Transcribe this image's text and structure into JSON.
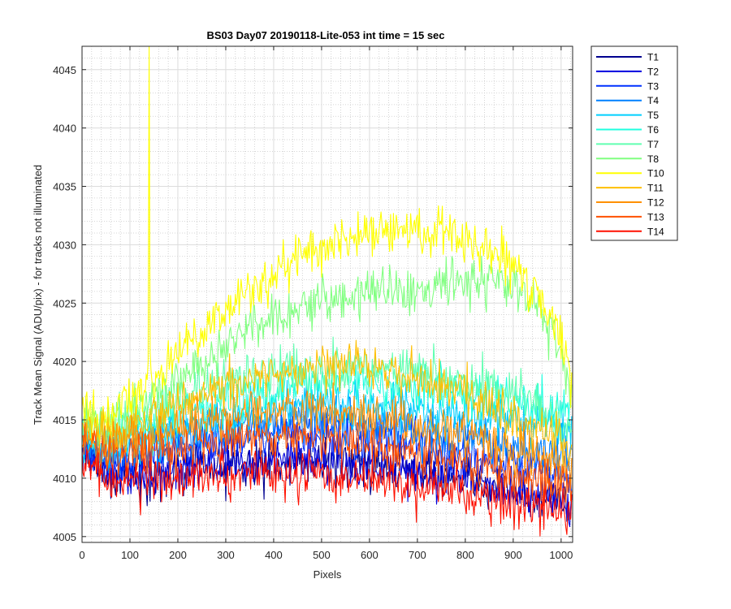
{
  "chart_data": {
    "type": "line",
    "title": "BS03 Day07 20190118-Lite-053 int time = 15 sec",
    "xlabel": "Pixels",
    "ylabel": "Track Mean Signal (ADU/pix) - for tracks not illuminated",
    "xlim": [
      0,
      1024
    ],
    "ylim": [
      4004.5,
      4047.0
    ],
    "xticks": [
      "0",
      "100",
      "200",
      "300",
      "400",
      "500",
      "600",
      "700",
      "800",
      "900",
      "1000"
    ],
    "yticks": [
      "4005",
      "4010",
      "4015",
      "4020",
      "4025",
      "4030",
      "4035",
      "4040",
      "4045"
    ],
    "grid": "major and minor",
    "legend_position": "outside-right-top",
    "x": [
      0,
      50,
      100,
      150,
      200,
      250,
      300,
      350,
      400,
      450,
      500,
      550,
      600,
      650,
      700,
      750,
      800,
      850,
      900,
      950,
      1000,
      1024
    ],
    "series": [
      {
        "name": "T1",
        "color": "#00008f",
        "values": [
          4012.0,
          4010.5,
          4010.0,
          4010.2,
          4010.5,
          4010.8,
          4011.0,
          4011.2,
          4011.3,
          4011.5,
          4011.5,
          4011.3,
          4011.0,
          4010.8,
          4010.5,
          4010.3,
          4010.0,
          4009.5,
          4009.0,
          4008.5,
          4008.0,
          4007.5
        ]
      },
      {
        "name": "T2",
        "color": "#0000df",
        "values": [
          4012.2,
          4010.7,
          4010.2,
          4010.4,
          4010.7,
          4011.0,
          4011.2,
          4011.4,
          4011.5,
          4011.6,
          4011.6,
          4011.4,
          4011.2,
          4011.0,
          4010.7,
          4010.5,
          4010.2,
          4009.7,
          4009.2,
          4008.7,
          4008.2,
          4007.7
        ]
      },
      {
        "name": "T3",
        "color": "#0030ff",
        "values": [
          4012.5,
          4011.5,
          4011.5,
          4012.0,
          4012.5,
          4013.0,
          4013.3,
          4013.6,
          4013.8,
          4014.0,
          4014.0,
          4013.8,
          4013.5,
          4013.2,
          4012.8,
          4012.5,
          4012.0,
          4011.5,
          4011.0,
          4010.5,
          4010.0,
          4009.5
        ]
      },
      {
        "name": "T4",
        "color": "#0080ff",
        "values": [
          4013.0,
          4012.0,
          4012.2,
          4012.8,
          4013.3,
          4013.8,
          4014.2,
          4014.6,
          4014.8,
          4015.0,
          4015.0,
          4014.8,
          4014.6,
          4014.3,
          4014.0,
          4013.8,
          4013.5,
          4013.2,
          4012.8,
          4012.5,
          4012.0,
          4011.5
        ]
      },
      {
        "name": "T5",
        "color": "#00cfff",
        "values": [
          4013.5,
          4012.5,
          4013.0,
          4013.8,
          4014.3,
          4014.8,
          4015.2,
          4015.6,
          4016.0,
          4016.2,
          4016.3,
          4016.3,
          4016.2,
          4016.0,
          4015.8,
          4015.6,
          4015.4,
          4015.2,
          4015.0,
          4014.8,
          4014.5,
          4014.2
        ]
      },
      {
        "name": "T6",
        "color": "#20ffdf",
        "values": [
          4014.0,
          4013.3,
          4014.0,
          4014.8,
          4015.4,
          4016.0,
          4016.5,
          4017.0,
          4017.4,
          4017.8,
          4018.0,
          4018.1,
          4018.1,
          4018.0,
          4017.8,
          4017.6,
          4017.3,
          4017.0,
          4016.7,
          4016.3,
          4015.8,
          4015.3
        ]
      },
      {
        "name": "T7",
        "color": "#60ffb0",
        "values": [
          4014.5,
          4014.0,
          4015.0,
          4016.0,
          4016.8,
          4017.5,
          4018.0,
          4018.5,
          4018.8,
          4019.0,
          4019.2,
          4019.3,
          4019.3,
          4019.2,
          4019.0,
          4018.8,
          4018.5,
          4018.0,
          4017.5,
          4016.5,
          4015.0,
          4014.0
        ]
      },
      {
        "name": "T8",
        "color": "#80ff80",
        "values": [
          4015.0,
          4014.5,
          4015.5,
          4017.0,
          4018.5,
          4020.0,
          4021.3,
          4022.5,
          4023.5,
          4024.3,
          4025.0,
          4025.5,
          4026.0,
          4026.3,
          4026.6,
          4026.8,
          4027.0,
          4027.2,
          4026.5,
          4024.5,
          4021.0,
          4017.0
        ]
      },
      {
        "name": "T10",
        "color": "#ffff00",
        "values": [
          4015.5,
          4015.0,
          4016.5,
          4018.5,
          4020.5,
          4022.5,
          4024.5,
          4026.0,
          4027.5,
          4028.7,
          4029.7,
          4030.5,
          4031.0,
          4031.3,
          4031.3,
          4031.0,
          4030.5,
          4029.7,
          4028.3,
          4026.0,
          4022.0,
          4018.0
        ]
      },
      {
        "name": "T11",
        "color": "#ffbf00",
        "values": [
          4014.5,
          4013.8,
          4014.5,
          4015.5,
          4016.3,
          4017.0,
          4017.7,
          4018.3,
          4018.8,
          4019.2,
          4019.5,
          4019.6,
          4019.5,
          4019.2,
          4018.6,
          4018.0,
          4017.2,
          4016.3,
          4015.3,
          4014.3,
          4013.3,
          4012.5
        ]
      },
      {
        "name": "T12",
        "color": "#ff9000",
        "values": [
          4013.5,
          4012.8,
          4013.2,
          4013.8,
          4014.3,
          4014.8,
          4015.2,
          4015.5,
          4015.7,
          4015.8,
          4015.8,
          4015.6,
          4015.3,
          4015.0,
          4014.5,
          4014.0,
          4013.5,
          4013.0,
          4012.3,
          4011.7,
          4011.0,
          4010.5
        ]
      },
      {
        "name": "T13",
        "color": "#ff5000",
        "values": [
          4013.0,
          4012.0,
          4012.2,
          4012.5,
          4012.8,
          4013.0,
          4013.2,
          4013.3,
          4013.4,
          4013.4,
          4013.3,
          4013.1,
          4012.8,
          4012.4,
          4012.0,
          4011.6,
          4011.2,
          4010.8,
          4010.3,
          4009.8,
          4009.3,
          4009.0
        ]
      },
      {
        "name": "T14",
        "color": "#ff1000",
        "values": [
          4011.5,
          4010.0,
          4009.7,
          4009.8,
          4010.0,
          4010.1,
          4010.2,
          4010.3,
          4010.3,
          4010.3,
          4010.2,
          4010.0,
          4009.8,
          4009.5,
          4009.2,
          4008.9,
          4008.6,
          4008.3,
          4008.0,
          4007.6,
          4007.2,
          4007.0
        ]
      }
    ],
    "annotations": [
      {
        "series": "T10",
        "type": "spike",
        "x": 140,
        "y_peak": 4047.0
      }
    ]
  }
}
